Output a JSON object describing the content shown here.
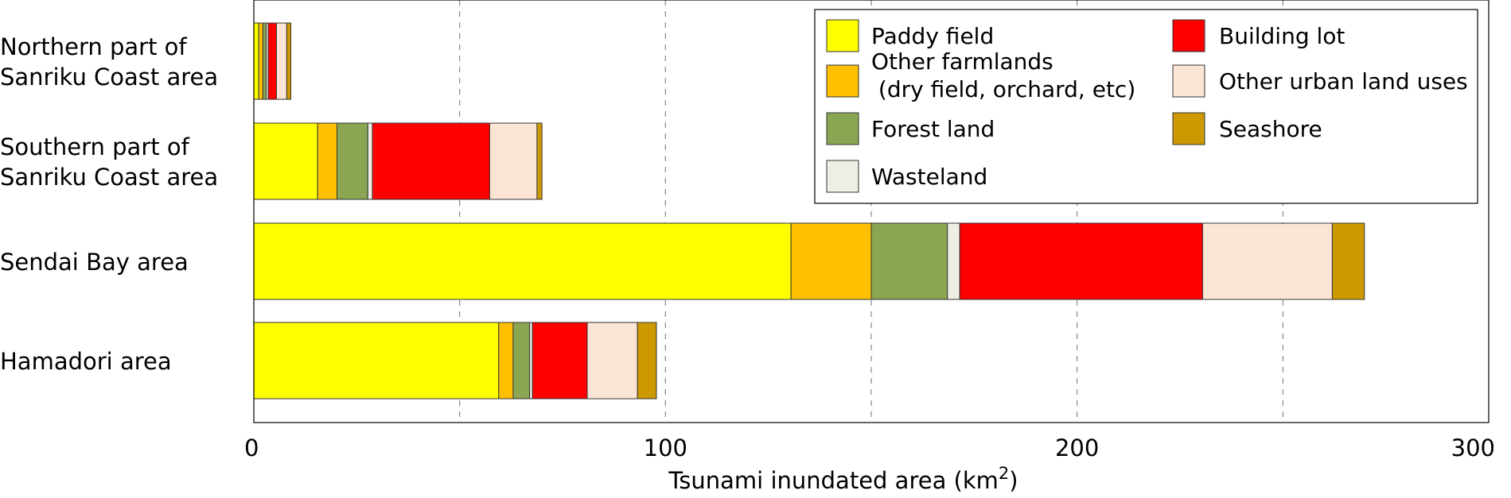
{
  "chart_data": {
    "type": "bar",
    "orientation": "horizontal",
    "stacked": true,
    "xlabel": "Tsunami inundated area (km",
    "xlabel_superscript": "2",
    "xlabel_suffix": ")",
    "xlim": [
      0,
      300
    ],
    "xticks": [
      0,
      100,
      200,
      300
    ],
    "xtick_labels": [
      "0",
      "100",
      "200",
      "300"
    ],
    "gridlines_x": [
      50,
      100,
      150,
      200,
      250
    ],
    "grid": "vertical dashed",
    "legend_position": "top-right",
    "categories": [
      [
        "Northern part of",
        "Sanriku Coast area"
      ],
      [
        "Southern part of",
        "Sanriku Coast area"
      ],
      [
        "Sendai Bay area"
      ],
      [
        "Hamadori area"
      ]
    ],
    "series": [
      {
        "name": "Paddy field",
        "legend_lines": [
          "Paddy field"
        ],
        "color": "#ffff00",
        "values": [
          1.2,
          15.5,
          130.5,
          59.5
        ]
      },
      {
        "name": "Other farmlands (dry field, orchard, etc)",
        "legend_lines": [
          "Other farmlands",
          " (dry field, orchard, etc)"
        ],
        "color": "#ffc000",
        "values": [
          1.0,
          4.7,
          19.5,
          3.5
        ]
      },
      {
        "name": "Forest land",
        "legend_lines": [
          "Forest land"
        ],
        "color": "#8aa653",
        "values": [
          0.8,
          7.5,
          18.5,
          4.0
        ]
      },
      {
        "name": "Wasteland",
        "legend_lines": [
          "Wasteland"
        ],
        "color": "#eeeee4",
        "values": [
          0.5,
          1.1,
          3.0,
          0.7
        ]
      },
      {
        "name": "Building lot",
        "legend_lines": [
          "Building lot"
        ],
        "color": "#ff0000",
        "values": [
          2.0,
          28.5,
          59.0,
          13.3
        ]
      },
      {
        "name": "Other urban land uses",
        "legend_lines": [
          "Other urban land uses"
        ],
        "color": "#fde5d6",
        "values": [
          2.5,
          11.5,
          31.5,
          12.2
        ]
      },
      {
        "name": "Seashore",
        "legend_lines": [
          "Seashore"
        ],
        "color": "#cc9900",
        "values": [
          1.0,
          1.2,
          7.8,
          4.6
        ]
      }
    ]
  }
}
